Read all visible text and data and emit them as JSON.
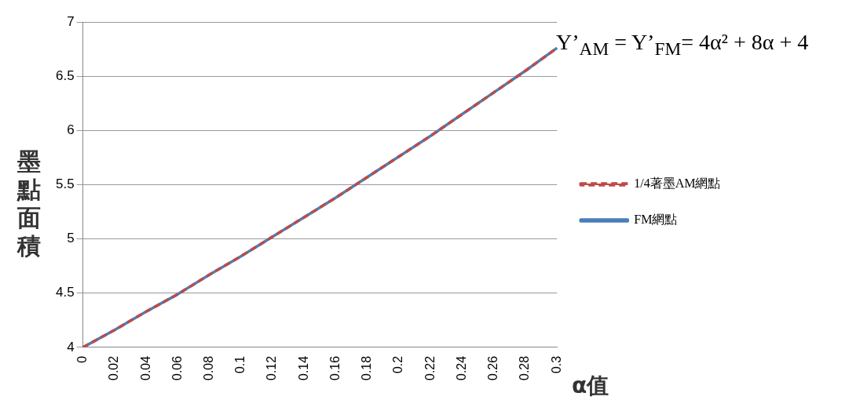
{
  "chart_data": {
    "type": "line",
    "xlabel": "α值",
    "ylabel": "墨點面積",
    "annotations": [
      "Y’$_{AM}$ = Y’$_{FM}$= 4α² + 8α + 4"
    ],
    "categories": [
      "0",
      "0.02",
      "0.04",
      "0.06",
      "0.08",
      "0.1",
      "0.12",
      "0.14",
      "0.16",
      "0.18",
      "0.2",
      "0.22",
      "0.24",
      "0.26",
      "0.28",
      "0.3"
    ],
    "series": [
      {
        "name": "FM網點",
        "color": "#4a7ebb",
        "line_style": "solid",
        "values": [
          4,
          4.16,
          4.33,
          4.49,
          4.67,
          4.84,
          5.02,
          5.2,
          5.38,
          5.57,
          5.76,
          5.95,
          6.15,
          6.35,
          6.55,
          6.76
        ]
      },
      {
        "name": "1/4著墨AM網點",
        "color": "#be4b48",
        "line_style": "dashed",
        "values": [
          4,
          4.16,
          4.33,
          4.49,
          4.67,
          4.84,
          5.02,
          5.2,
          5.38,
          5.57,
          5.76,
          5.95,
          6.15,
          6.35,
          6.55,
          6.76
        ]
      }
    ],
    "ylim": [
      4,
      7
    ],
    "yticks": [
      4,
      4.5,
      5,
      5.5,
      6,
      6.5,
      7
    ],
    "grid": "y",
    "legend": "right",
    "marker": "none"
  }
}
